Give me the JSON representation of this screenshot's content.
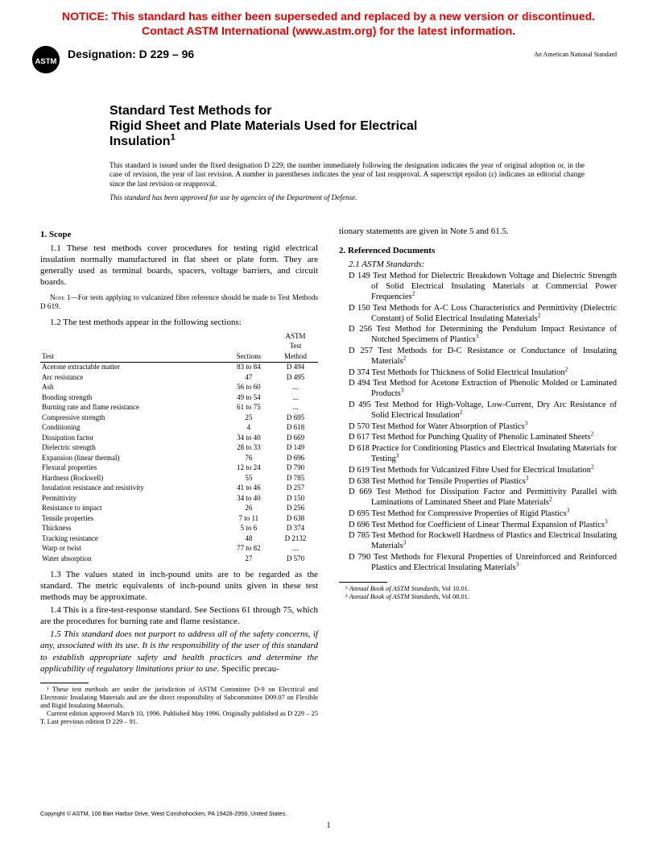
{
  "notice": {
    "line1": "NOTICE: This standard has either been superseded and replaced by a new version or discontinued.",
    "line2": "Contact ASTM International (www.astm.org) for the latest information.",
    "color": "#ee0000",
    "fontsize": 14
  },
  "header": {
    "designation_label": "Designation: D 229 – 96",
    "ans_label": "An American National Standard",
    "logo_fill": "#000000"
  },
  "title": {
    "line1": "Standard Test Methods for",
    "line2": "Rigid Sheet and Plate Materials Used for Electrical",
    "line3": "Insulation",
    "sup": "1"
  },
  "issue_note": "This standard is issued under the fixed designation D 229; the number immediately following the designation indicates the year of original adoption or, in the case of revision, the year of last revision. A number in parentheses indicates the year of last reapproval. A superscript epsilon (ε) indicates an editorial change since the last revision or reapproval.",
  "dod_note": "This standard has been approved for use by agencies of the Department of Defense.",
  "scope": {
    "heading": "1. Scope",
    "p1_1": "1.1 These test methods cover procedures for testing rigid electrical insulation normally manufactured in flat sheet or plate form. They are generally used as terminal boards, spacers, voltage barriers, and circuit boards.",
    "note1_label": "Note 1",
    "note1_text": "—For tests applying to vulcanized fibre reference should be made to Test Methods D 619.",
    "p1_2_lead": "1.2 The test methods appear in the following sections:",
    "p1_3": "1.3 The values stated in inch-pound units are to be regarded as the standard. The metric equivalents of inch-pound units given in these test methods may be approximate.",
    "p1_4": "1.4 This is a fire-test-response standard. See Sections 61 through 75, which are the procedures for burning rate and flame resistance.",
    "p1_5_italic": "1.5 This standard does not purport to address all of the safety concerns, if any, associated with its use. It is the responsibility of the user of this standard to establish appropriate safety and health practices and determine the applicability of regulatory limitations prior to use.",
    "p1_5_tail": " Specific precau-",
    "p1_5_cont": "tionary statements are given in Note 5 and 61.5."
  },
  "table": {
    "headers": {
      "test": "Test",
      "sections": "Sections",
      "method_line1": "ASTM",
      "method_line2": "Test",
      "method_line3": "Method"
    },
    "rows": [
      {
        "t": "Acetone extractable matter",
        "s": "83 to 84",
        "m": "D 494"
      },
      {
        "t": "Arc resistance",
        "s": "47",
        "m": "D 495"
      },
      {
        "t": "Ash",
        "s": "56 to 60",
        "m": "..."
      },
      {
        "t": "Bonding strength",
        "s": "49 to 54",
        "m": "..."
      },
      {
        "t": "Burning rate and flame resistance",
        "s": "61 to 75",
        "m": "..."
      },
      {
        "t": "Compressive strength",
        "s": "25",
        "m": "D 695"
      },
      {
        "t": "Conditioning",
        "s": "4",
        "m": "D 618"
      },
      {
        "t": "Dissipation factor",
        "s": "34 to 40",
        "m": "D 669"
      },
      {
        "t": "Dielectric strength",
        "s": "28 to 33",
        "m": "D 149"
      },
      {
        "t": "Expansion (linear thermal)",
        "s": "76",
        "m": "D 696"
      },
      {
        "t": "Flexural properties",
        "s": "12 to 24",
        "m": "D 790"
      },
      {
        "t": "Hardness (Rockwell)",
        "s": "55",
        "m": "D 785"
      },
      {
        "t": "Insulation resistance and resistivity",
        "s": "41 to 46",
        "m": "D 257"
      },
      {
        "t": "Permittivity",
        "s": "34 to 40",
        "m": "D 150"
      },
      {
        "t": "Resistance to impact",
        "s": "26",
        "m": "D 256"
      },
      {
        "t": "Tensile properties",
        "s": "7 to 11",
        "m": "D 638"
      },
      {
        "t": "Thickness",
        "s": "5 to 6",
        "m": "D 374"
      },
      {
        "t": "Tracking resistance",
        "s": "48",
        "m": "D 2132"
      },
      {
        "t": "Warp or twist",
        "s": "77 to 82",
        "m": "..."
      },
      {
        "t": "Water absorption",
        "s": "27",
        "m": "D 570"
      }
    ]
  },
  "refs": {
    "heading": "2. Referenced Documents",
    "sub": "2.1 ASTM Standards:",
    "items": [
      {
        "d": "D 149",
        "t": "Test Method for Dielectric Breakdown Voltage and Dielectric Strength of Solid Electrical Insulating Materials at Commercial Power Frequencies",
        "n": "2"
      },
      {
        "d": "D 150",
        "t": "Test Methods for A-C Loss Characteristics and Permittivity (Dielectric Constant) of Solid Electrical Insulating Materials",
        "n": "2"
      },
      {
        "d": "D 256",
        "t": "Test Method for Determining the Pendulum Impact Resistance of Notched Specimens of Plastics",
        "n": "3"
      },
      {
        "d": "D 257",
        "t": "Test Methods for D-C Resistance or Conductance of Insulating Materials",
        "n": "2"
      },
      {
        "d": "D 374",
        "t": "Test Methods for Thickness of Solid Electrical Insulation",
        "n": "2"
      },
      {
        "d": "D 494",
        "t": "Test Method for Acetone Extraction of Phenolic Molded or Laminated Products",
        "n": "3"
      },
      {
        "d": "D 495",
        "t": "Test Method for High-Voltage, Low-Current, Dry Arc Resistance of Solid Electrical Insulation",
        "n": "2"
      },
      {
        "d": "D 570",
        "t": "Test Method for Water Absorption of Plastics",
        "n": "3"
      },
      {
        "d": "D 617",
        "t": "Test Method for Punching Quality of Phenolic Laminated Sheets",
        "n": "2"
      },
      {
        "d": "D 618",
        "t": "Practice for Conditioning Plastics and Electrical Insulating Materials for Testing",
        "n": "3"
      },
      {
        "d": "D 619",
        "t": "Test Methods for Vulcanized Fibre Used for Electrical Insulation",
        "n": "2"
      },
      {
        "d": "D 638",
        "t": "Test Method for Tensile Properties of Plastics",
        "n": "3"
      },
      {
        "d": "D 669",
        "t": "Test Method for Dissipation Factor and Permittivity Parallel with Laminations of Laminated Sheet and Plate Materials",
        "n": "2"
      },
      {
        "d": "D 695",
        "t": "Test Method for Compressive Properties of Rigid Plastics",
        "n": "3"
      },
      {
        "d": "D 696",
        "t": "Test Method for Coefficient of Linear Thermal Expansion of Plastics",
        "n": "3"
      },
      {
        "d": "D 785",
        "t": "Test Method for Rockwell Hardness of Plastics and Electrical Insulating Materials",
        "n": "3"
      },
      {
        "d": "D 790",
        "t": "Test Methods for Flexural Properties of Unreinforced and Reinforced Plastics and Electrical Insulating Materials",
        "n": "3"
      }
    ]
  },
  "footnotes": {
    "left1": "¹ These test methods are under the jurisdiction of ASTM Committee D-9 on Electrical and Electronic Insulating Materials and are the direct responsibility of Subcommittee D09.07 on Flexible and Rigid Insulating Materials.",
    "left2": "Current edition approved March 10, 1996. Published May 1996. Originally published as D 229 – 25 T. Last previous edition D 229 – 91.",
    "right1_pre": "² ",
    "right1_ital": "Annual Book of ASTM Standards",
    "right1_post": ", Vol 10.01.",
    "right2_pre": "³ ",
    "right2_ital": "Annual Book of ASTM Standards",
    "right2_post": ", Vol 08.01."
  },
  "copyright": "Copyright © ASTM, 100 Barr Harbor Drive, West Conshohocken, PA 19428-2959, United States.",
  "page_number": "1"
}
